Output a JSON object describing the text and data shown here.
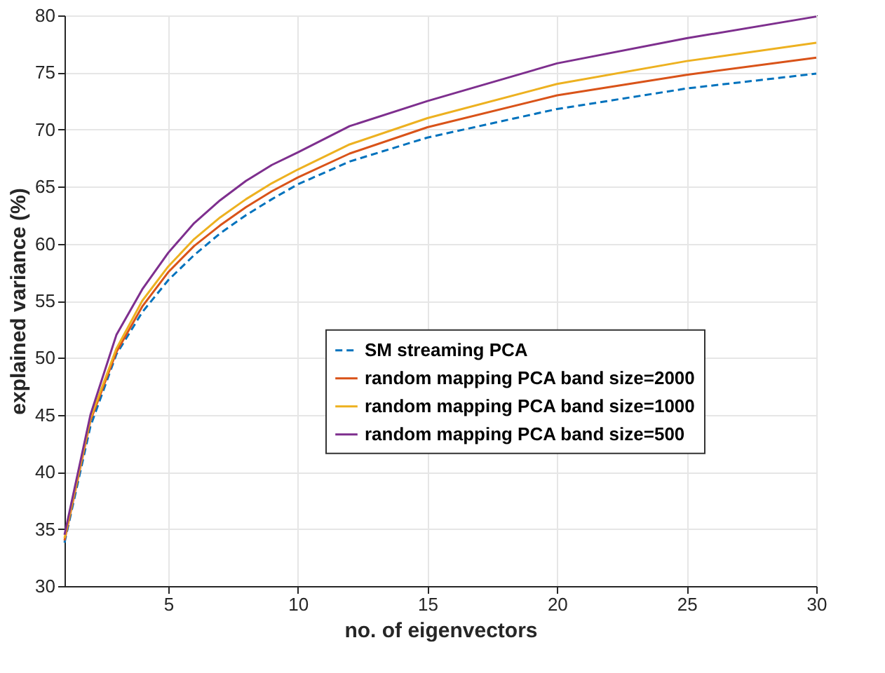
{
  "chart_data": {
    "type": "line",
    "xlabel": "no. of eigenvectors",
    "ylabel": "explained variance (%)",
    "x": [
      1,
      2,
      3,
      4,
      5,
      6,
      7,
      8,
      9,
      10,
      12,
      15,
      20,
      25,
      30
    ],
    "series": [
      {
        "name": "SM streaming PCA",
        "color": "#0072bd",
        "line_style": "dashed",
        "values": [
          33.8,
          44,
          50.3,
          54,
          56.8,
          59,
          60.9,
          62.5,
          63.9,
          65.2,
          67.2,
          69.3,
          71.8,
          73.6,
          74.9
        ]
      },
      {
        "name": "random mapping PCA band size=2000",
        "color": "#d95319",
        "line_style": "solid",
        "values": [
          34,
          44.5,
          50.5,
          54.5,
          57.5,
          59.8,
          61.6,
          63.2,
          64.6,
          65.8,
          67.9,
          70.2,
          73,
          74.8,
          76.3
        ]
      },
      {
        "name": "random mapping PCA band size=1000",
        "color": "#edb120",
        "line_style": "solid",
        "values": [
          34.2,
          44.7,
          50.8,
          55,
          58,
          60.4,
          62.3,
          63.9,
          65.3,
          66.5,
          68.7,
          71,
          74,
          76,
          77.6
        ]
      },
      {
        "name": "random mapping PCA band size=500",
        "color": "#7e2f8e",
        "line_style": "solid",
        "values": [
          34.5,
          45,
          52,
          56,
          59.2,
          61.8,
          63.8,
          65.5,
          66.9,
          68,
          70.3,
          72.5,
          75.8,
          78,
          79.9
        ]
      }
    ],
    "xlim": [
      1,
      30
    ],
    "xticks": [
      5,
      10,
      15,
      20,
      25,
      30
    ],
    "ylim": [
      30,
      80
    ],
    "yticks": [
      30,
      35,
      40,
      45,
      50,
      55,
      60,
      65,
      70,
      75,
      80
    ],
    "grid": true,
    "legend": "right",
    "marker": "none"
  }
}
